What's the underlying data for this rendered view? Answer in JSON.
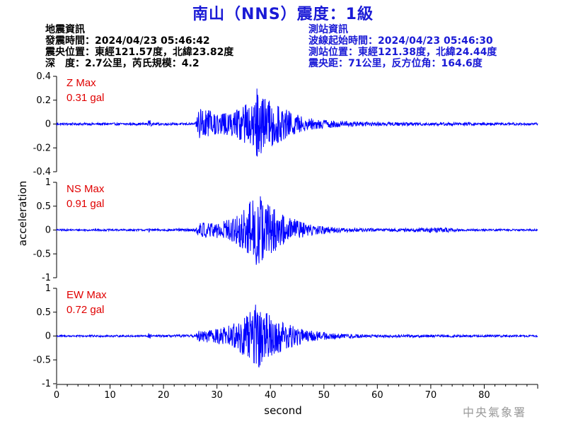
{
  "header": {
    "title": "南山（NNS）震度：1級",
    "quake_info": [
      "地震資訊",
      "發震時間：2024/04/23 05:46:42",
      "震央位置：東經121.57度，北緯23.82度",
      "深　度：2.7公里，芮氏規模：4.2"
    ],
    "station_info": [
      "測站資訊",
      "波線起始時間：2024/04/23 05:46:30",
      "測站位置：東經121.38度，北緯24.44度",
      "震央距：71公里，反方位角：164.6度"
    ]
  },
  "footer": {
    "agency": "中央氣象署"
  },
  "chart_data": {
    "type": "line",
    "xlabel": "second",
    "ylabel": "acceleration",
    "xlim": [
      0,
      90
    ],
    "x_ticks": [
      "0",
      "10",
      "20",
      "30",
      "40",
      "50",
      "60",
      "70",
      "80"
    ],
    "line_color": "#0000ff",
    "grid": false,
    "panels": [
      {
        "name": "Z",
        "max_label": "Z Max",
        "max_value": "0.31 gal",
        "ylim": [
          -0.4,
          0.4
        ],
        "y_ticks": [
          "0.4",
          "0.2",
          "0",
          "-0.2",
          "-0.4"
        ],
        "noise": 0.008,
        "p_arrival": 26.5,
        "s_arrival": 36.5,
        "envelope": [
          [
            0,
            0.01
          ],
          [
            17,
            0.01
          ],
          [
            17.3,
            0.04
          ],
          [
            17.8,
            0.01
          ],
          [
            26,
            0.01
          ],
          [
            26.5,
            0.14
          ],
          [
            30,
            0.09
          ],
          [
            33,
            0.1
          ],
          [
            36,
            0.18
          ],
          [
            37.5,
            0.31
          ],
          [
            39,
            0.22
          ],
          [
            43,
            0.12
          ],
          [
            47,
            0.05
          ],
          [
            53,
            0.025
          ],
          [
            60,
            0.015
          ],
          [
            90,
            0.01
          ]
        ]
      },
      {
        "name": "NS",
        "max_label": "NS Max",
        "max_value": "0.91 gal",
        "ylim": [
          -1,
          1
        ],
        "y_ticks": [
          "1",
          "0.5",
          "0",
          "-0.5",
          "-1"
        ],
        "noise": 0.02,
        "p_arrival": 26.5,
        "s_arrival": 36.5,
        "envelope": [
          [
            0,
            0.02
          ],
          [
            17,
            0.02
          ],
          [
            17.3,
            0.06
          ],
          [
            17.8,
            0.02
          ],
          [
            26,
            0.03
          ],
          [
            26.5,
            0.16
          ],
          [
            30,
            0.18
          ],
          [
            33,
            0.25
          ],
          [
            36,
            0.55
          ],
          [
            37.5,
            0.91
          ],
          [
            39,
            0.6
          ],
          [
            43,
            0.3
          ],
          [
            47,
            0.12
          ],
          [
            53,
            0.05
          ],
          [
            60,
            0.03
          ],
          [
            73,
            0.05
          ],
          [
            76,
            0.02
          ],
          [
            90,
            0.02
          ]
        ]
      },
      {
        "name": "EW",
        "max_label": "EW Max",
        "max_value": "0.72 gal",
        "ylim": [
          -1,
          1
        ],
        "y_ticks": [
          "1",
          "0.5",
          "0",
          "-0.5",
          "-1"
        ],
        "noise": 0.02,
        "p_arrival": 26.5,
        "s_arrival": 36.5,
        "envelope": [
          [
            0,
            0.02
          ],
          [
            17,
            0.02
          ],
          [
            17.3,
            0.08
          ],
          [
            17.8,
            0.02
          ],
          [
            26,
            0.03
          ],
          [
            26.5,
            0.12
          ],
          [
            30,
            0.15
          ],
          [
            33,
            0.25
          ],
          [
            36,
            0.5
          ],
          [
            37.5,
            0.72
          ],
          [
            39,
            0.5
          ],
          [
            43,
            0.28
          ],
          [
            47,
            0.12
          ],
          [
            53,
            0.05
          ],
          [
            60,
            0.03
          ],
          [
            90,
            0.02
          ]
        ]
      }
    ]
  }
}
